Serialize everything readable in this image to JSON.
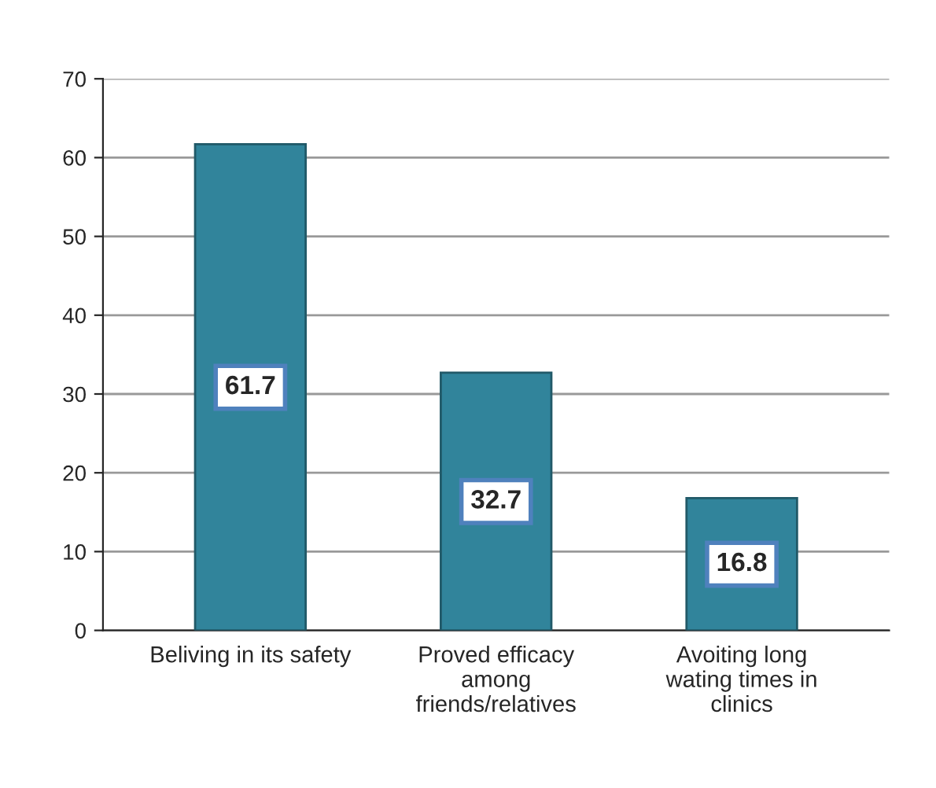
{
  "chart_data": {
    "type": "bar",
    "categories": [
      "Beliving in its safety",
      "Proved efficacy\namong\nfriends/relatives",
      "Avoiting long\nwating times in\nclinics"
    ],
    "values": [
      61.7,
      32.7,
      16.8
    ],
    "color": "#31849b",
    "ylim": [
      0,
      70
    ],
    "yticks": [
      0,
      10,
      20,
      30,
      40,
      50,
      60,
      70
    ],
    "grid": "y",
    "data_labels": true,
    "legend": false
  }
}
